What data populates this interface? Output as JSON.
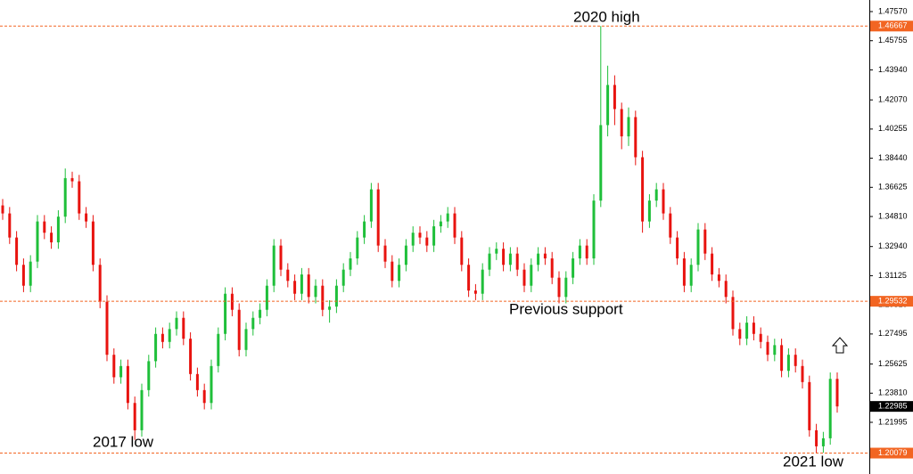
{
  "chart_data": {
    "type": "candlestick",
    "ylim": [
      1.18777,
      1.48291
    ],
    "yticks": [
      {
        "value": 1.4757,
        "label": "1.47570"
      },
      {
        "value": 1.45755,
        "label": "1.45755"
      },
      {
        "value": 1.4394,
        "label": "1.43940"
      },
      {
        "value": 1.4207,
        "label": "1.42070"
      },
      {
        "value": 1.40255,
        "label": "1.40255"
      },
      {
        "value": 1.3844,
        "label": "1.38440"
      },
      {
        "value": 1.36625,
        "label": "1.36625"
      },
      {
        "value": 1.3481,
        "label": "1.34810"
      },
      {
        "value": 1.3294,
        "label": "1.32940"
      },
      {
        "value": 1.31125,
        "label": "1.31125"
      },
      {
        "value": 1.2931,
        "label": "1.29310"
      },
      {
        "value": 1.27495,
        "label": "1.27495"
      },
      {
        "value": 1.25625,
        "label": "1.25625"
      },
      {
        "value": 1.2381,
        "label": "1.23810"
      },
      {
        "value": 1.21995,
        "label": "1.21995"
      }
    ],
    "levels": [
      {
        "value": 1.46667,
        "label": "1.46667"
      },
      {
        "value": 1.29532,
        "label": "1.29532"
      },
      {
        "value": 1.20079,
        "label": "1.20079"
      }
    ],
    "level_color": "#f26522",
    "current_price": {
      "value": 1.22985,
      "label": "1.22985"
    },
    "up_color": "#1fbf3a",
    "down_color": "#e8130f",
    "annotations": [
      "2020 high",
      "Previous support",
      "2017 low",
      "2021 low"
    ],
    "open": [
      1.355,
      1.35,
      1.335,
      1.318,
      1.305,
      1.32,
      1.345,
      1.338,
      1.332,
      1.348,
      1.372,
      1.37,
      1.35,
      1.345,
      1.318,
      1.295,
      1.262,
      1.248,
      1.255,
      1.232,
      1.215,
      1.24,
      1.258,
      1.275,
      1.27,
      1.278,
      1.285,
      1.272,
      1.25,
      1.24,
      1.232,
      1.255,
      1.275,
      1.3,
      1.29,
      1.265,
      1.278,
      1.285,
      1.29,
      1.305,
      1.33,
      1.315,
      1.308,
      1.3,
      1.312,
      1.298,
      1.305,
      1.29,
      1.292,
      1.305,
      1.315,
      1.322,
      1.335,
      1.345,
      1.365,
      1.33,
      1.32,
      1.308,
      1.318,
      1.33,
      1.338,
      1.335,
      1.33,
      1.342,
      1.345,
      1.35,
      1.335,
      1.318,
      1.302,
      1.3,
      1.315,
      1.325,
      1.328,
      1.318,
      1.325,
      1.315,
      1.305,
      1.318,
      1.325,
      1.322,
      1.31,
      1.298,
      1.31,
      1.322,
      1.33,
      1.322,
      1.358,
      1.405,
      1.43,
      1.415,
      1.398,
      1.41,
      1.385,
      1.345,
      1.358,
      1.365,
      1.35,
      1.335,
      1.322,
      1.305,
      1.318,
      1.34,
      1.325,
      1.312,
      1.308,
      1.298,
      1.278,
      1.272,
      1.282,
      1.275,
      1.27,
      1.262,
      1.268,
      1.252,
      1.262,
      1.255,
      1.245,
      1.215,
      1.205,
      1.21,
      1.247
    ],
    "high": [
      1.359,
      1.354,
      1.339,
      1.322,
      1.324,
      1.349,
      1.349,
      1.342,
      1.352,
      1.378,
      1.376,
      1.374,
      1.354,
      1.349,
      1.322,
      1.299,
      1.266,
      1.259,
      1.259,
      1.236,
      1.244,
      1.262,
      1.279,
      1.279,
      1.282,
      1.289,
      1.289,
      1.276,
      1.254,
      1.244,
      1.259,
      1.279,
      1.304,
      1.304,
      1.294,
      1.282,
      1.289,
      1.294,
      1.309,
      1.334,
      1.334,
      1.319,
      1.312,
      1.316,
      1.316,
      1.309,
      1.309,
      1.296,
      1.309,
      1.319,
      1.326,
      1.339,
      1.349,
      1.369,
      1.369,
      1.334,
      1.324,
      1.322,
      1.334,
      1.342,
      1.342,
      1.339,
      1.346,
      1.349,
      1.354,
      1.354,
      1.339,
      1.322,
      1.306,
      1.319,
      1.329,
      1.332,
      1.332,
      1.329,
      1.329,
      1.319,
      1.322,
      1.329,
      1.329,
      1.326,
      1.314,
      1.314,
      1.326,
      1.334,
      1.334,
      1.362,
      1.4667,
      1.442,
      1.436,
      1.419,
      1.416,
      1.414,
      1.389,
      1.362,
      1.369,
      1.369,
      1.354,
      1.339,
      1.326,
      1.322,
      1.344,
      1.344,
      1.329,
      1.316,
      1.312,
      1.302,
      1.282,
      1.286,
      1.286,
      1.279,
      1.274,
      1.272,
      1.272,
      1.266,
      1.266,
      1.259,
      1.249,
      1.219,
      1.214,
      1.251,
      1.251
    ],
    "low": [
      1.346,
      1.331,
      1.314,
      1.301,
      1.301,
      1.316,
      1.334,
      1.328,
      1.328,
      1.344,
      1.366,
      1.346,
      1.341,
      1.314,
      1.291,
      1.258,
      1.244,
      1.244,
      1.228,
      1.209,
      1.211,
      1.236,
      1.254,
      1.266,
      1.266,
      1.274,
      1.268,
      1.246,
      1.236,
      1.228,
      1.228,
      1.251,
      1.271,
      1.286,
      1.261,
      1.261,
      1.274,
      1.281,
      1.286,
      1.301,
      1.311,
      1.304,
      1.296,
      1.296,
      1.294,
      1.294,
      1.286,
      1.282,
      1.288,
      1.301,
      1.311,
      1.318,
      1.331,
      1.341,
      1.326,
      1.316,
      1.304,
      1.304,
      1.314,
      1.326,
      1.331,
      1.326,
      1.326,
      1.338,
      1.341,
      1.331,
      1.314,
      1.298,
      1.296,
      1.296,
      1.311,
      1.321,
      1.314,
      1.314,
      1.311,
      1.301,
      1.301,
      1.314,
      1.318,
      1.306,
      1.294,
      1.294,
      1.306,
      1.318,
      1.318,
      1.318,
      1.354,
      1.398,
      1.405,
      1.39,
      1.392,
      1.38,
      1.338,
      1.341,
      1.354,
      1.346,
      1.331,
      1.318,
      1.301,
      1.301,
      1.314,
      1.321,
      1.308,
      1.304,
      1.294,
      1.274,
      1.268,
      1.268,
      1.271,
      1.266,
      1.258,
      1.258,
      1.248,
      1.248,
      1.251,
      1.241,
      1.211,
      1.2008,
      1.201,
      1.206,
      1.226
    ],
    "close": [
      1.35,
      1.335,
      1.318,
      1.305,
      1.32,
      1.345,
      1.338,
      1.332,
      1.348,
      1.372,
      1.37,
      1.35,
      1.345,
      1.318,
      1.295,
      1.262,
      1.248,
      1.255,
      1.232,
      1.215,
      1.24,
      1.258,
      1.275,
      1.27,
      1.278,
      1.285,
      1.272,
      1.25,
      1.24,
      1.232,
      1.255,
      1.275,
      1.3,
      1.29,
      1.265,
      1.278,
      1.285,
      1.29,
      1.305,
      1.33,
      1.315,
      1.308,
      1.3,
      1.312,
      1.298,
      1.305,
      1.29,
      1.292,
      1.305,
      1.315,
      1.322,
      1.335,
      1.345,
      1.365,
      1.33,
      1.32,
      1.308,
      1.318,
      1.33,
      1.338,
      1.335,
      1.33,
      1.342,
      1.345,
      1.35,
      1.335,
      1.318,
      1.302,
      1.3,
      1.315,
      1.325,
      1.328,
      1.318,
      1.325,
      1.315,
      1.305,
      1.318,
      1.325,
      1.322,
      1.31,
      1.298,
      1.31,
      1.322,
      1.33,
      1.322,
      1.358,
      1.405,
      1.43,
      1.415,
      1.398,
      1.41,
      1.385,
      1.345,
      1.358,
      1.365,
      1.35,
      1.335,
      1.322,
      1.305,
      1.318,
      1.34,
      1.325,
      1.312,
      1.308,
      1.298,
      1.278,
      1.272,
      1.282,
      1.275,
      1.27,
      1.262,
      1.268,
      1.252,
      1.262,
      1.255,
      1.245,
      1.215,
      1.205,
      1.21,
      1.247,
      1.22985
    ]
  }
}
